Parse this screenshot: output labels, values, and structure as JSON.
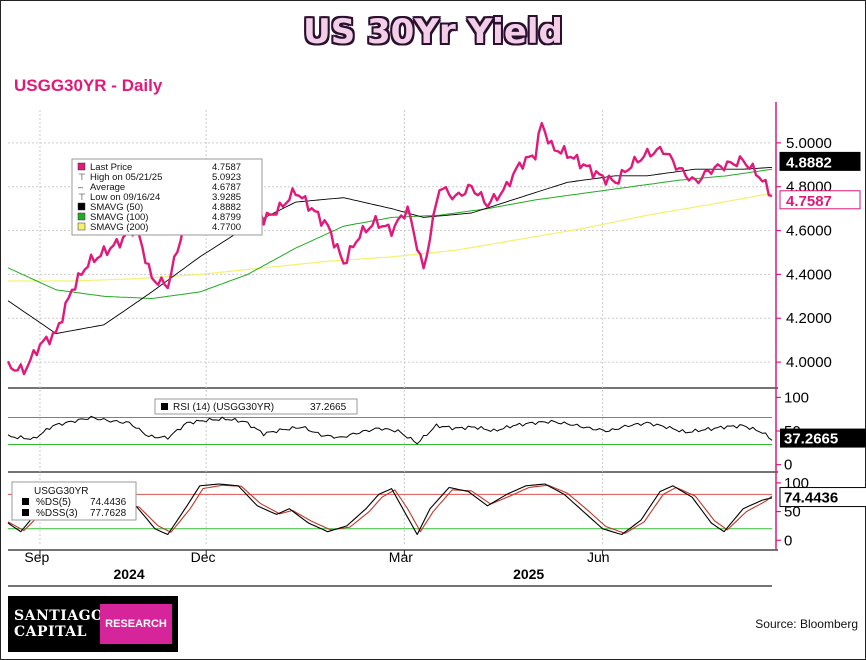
{
  "header": {
    "title": "US 30Yr Yield",
    "subtitle": "USGG30YR - Daily"
  },
  "footer": {
    "logo_line1": "SANTIAGO",
    "logo_line2": "CAPITAL",
    "logo_research": "RESEARCH",
    "source": "Source: Bloomberg"
  },
  "colors": {
    "last_price": "#e0197a",
    "smavg50": "#000000",
    "smavg100": "#22aa22",
    "smavg200": "#f5f06e",
    "rsi": "#000000",
    "ds": "#000000",
    "dss": "#c0392b",
    "title_fill": "#f2cfe6"
  },
  "chart_data": {
    "type": "line",
    "x_months": [
      {
        "label": "Sep",
        "idx": 2
      },
      {
        "label": "Dec",
        "idx": 54
      },
      {
        "label": "Mar",
        "idx": 116
      },
      {
        "label": "Jun",
        "idx": 178
      }
    ],
    "x_years": [
      {
        "label": "2024",
        "idx": 33
      },
      {
        "label": "2025",
        "idx": 158
      }
    ],
    "x_count": 240,
    "price_panel": {
      "ylim": [
        3.9,
        5.15
      ],
      "yticks": [
        "4.0000",
        "4.2000",
        "4.4000",
        "4.6000",
        "4.8000",
        "5.0000"
      ],
      "legend": [
        {
          "icon": "pink-square",
          "label": "Last Price",
          "value": "4.7587"
        },
        {
          "icon": "high-marker",
          "label": "High on 05/21/25",
          "value": "5.0923"
        },
        {
          "icon": "average-marker",
          "label": "Average",
          "value": "4.6787"
        },
        {
          "icon": "low-marker",
          "label": "Low on 09/16/24",
          "value": "3.9285"
        },
        {
          "icon": "black-square",
          "label": "SMAVG (50)",
          "value": "4.8882"
        },
        {
          "icon": "green-square",
          "label": "SMAVG (100)",
          "value": "4.8799"
        },
        {
          "icon": "yellow-square",
          "label": "SMAVG (200)",
          "value": "4.7700"
        }
      ],
      "right_labels": [
        {
          "text": "4.8882",
          "style": "black"
        },
        {
          "text": "4.7587",
          "style": "pink"
        }
      ],
      "series": [
        {
          "name": "Last Price",
          "color_key": "last_price",
          "knots": [
            [
              0,
              3.98
            ],
            [
              5,
              3.96
            ],
            [
              10,
              4.08
            ],
            [
              15,
              4.13
            ],
            [
              20,
              4.33
            ],
            [
              25,
              4.45
            ],
            [
              30,
              4.5
            ],
            [
              35,
              4.55
            ],
            [
              40,
              4.62
            ],
            [
              45,
              4.38
            ],
            [
              50,
              4.35
            ],
            [
              55,
              4.62
            ],
            [
              60,
              4.75
            ],
            [
              65,
              4.85
            ],
            [
              70,
              4.8
            ],
            [
              75,
              4.85
            ],
            [
              80,
              4.65
            ],
            [
              85,
              4.7
            ],
            [
              90,
              4.78
            ],
            [
              95,
              4.7
            ],
            [
              100,
              4.62
            ],
            [
              105,
              4.45
            ],
            [
              110,
              4.58
            ],
            [
              115,
              4.64
            ],
            [
              120,
              4.6
            ],
            [
              125,
              4.7
            ],
            [
              130,
              4.42
            ],
            [
              135,
              4.8
            ],
            [
              140,
              4.75
            ],
            [
              145,
              4.8
            ],
            [
              150,
              4.72
            ],
            [
              155,
              4.78
            ],
            [
              160,
              4.9
            ],
            [
              165,
              4.95
            ],
            [
              167,
              5.09
            ],
            [
              170,
              4.98
            ],
            [
              175,
              4.95
            ],
            [
              180,
              4.9
            ],
            [
              185,
              4.85
            ],
            [
              190,
              4.82
            ],
            [
              195,
              4.9
            ],
            [
              200,
              4.95
            ],
            [
              205,
              4.97
            ],
            [
              210,
              4.88
            ],
            [
              215,
              4.82
            ],
            [
              220,
              4.88
            ],
            [
              225,
              4.9
            ],
            [
              230,
              4.92
            ],
            [
              235,
              4.85
            ],
            [
              239,
              4.76
            ]
          ]
        },
        {
          "name": "SMAVG (50)",
          "color_key": "smavg50",
          "knots": [
            [
              0,
              4.28
            ],
            [
              15,
              4.13
            ],
            [
              30,
              4.17
            ],
            [
              45,
              4.32
            ],
            [
              60,
              4.48
            ],
            [
              75,
              4.62
            ],
            [
              90,
              4.73
            ],
            [
              105,
              4.75
            ],
            [
              120,
              4.7
            ],
            [
              130,
              4.66
            ],
            [
              145,
              4.68
            ],
            [
              160,
              4.75
            ],
            [
              175,
              4.82
            ],
            [
              190,
              4.85
            ],
            [
              200,
              4.85
            ],
            [
              215,
              4.88
            ],
            [
              230,
              4.88
            ],
            [
              239,
              4.8882
            ]
          ]
        },
        {
          "name": "SMAVG (100)",
          "color_key": "smavg100",
          "knots": [
            [
              0,
              4.43
            ],
            [
              15,
              4.33
            ],
            [
              30,
              4.3
            ],
            [
              45,
              4.29
            ],
            [
              60,
              4.32
            ],
            [
              75,
              4.4
            ],
            [
              90,
              4.52
            ],
            [
              105,
              4.62
            ],
            [
              120,
              4.66
            ],
            [
              135,
              4.67
            ],
            [
              150,
              4.7
            ],
            [
              165,
              4.74
            ],
            [
              180,
              4.77
            ],
            [
              195,
              4.8
            ],
            [
              210,
              4.83
            ],
            [
              225,
              4.85
            ],
            [
              239,
              4.8799
            ]
          ]
        },
        {
          "name": "SMAVG (200)",
          "color_key": "smavg200",
          "knots": [
            [
              0,
              4.37
            ],
            [
              20,
              4.37
            ],
            [
              40,
              4.38
            ],
            [
              60,
              4.4
            ],
            [
              80,
              4.43
            ],
            [
              100,
              4.46
            ],
            [
              120,
              4.48
            ],
            [
              140,
              4.51
            ],
            [
              160,
              4.56
            ],
            [
              180,
              4.61
            ],
            [
              200,
              4.67
            ],
            [
              220,
              4.72
            ],
            [
              239,
              4.77
            ]
          ]
        }
      ]
    },
    "rsi_panel": {
      "ylim": [
        0,
        100
      ],
      "yticks": [
        "0",
        "50",
        "100"
      ],
      "reference_lines": [
        30,
        70
      ],
      "legend": {
        "label": "RSI (14) (USGG30YR)",
        "value": "37.2665"
      },
      "right_label": "37.2665",
      "series": [
        {
          "name": "RSI (14) (USGG30YR)",
          "color_key": "rsi",
          "knots": [
            [
              0,
              42
            ],
            [
              8,
              38
            ],
            [
              14,
              58
            ],
            [
              20,
              64
            ],
            [
              26,
              70
            ],
            [
              32,
              65
            ],
            [
              38,
              62
            ],
            [
              44,
              42
            ],
            [
              50,
              40
            ],
            [
              56,
              62
            ],
            [
              62,
              66
            ],
            [
              68,
              68
            ],
            [
              74,
              64
            ],
            [
              80,
              46
            ],
            [
              86,
              52
            ],
            [
              92,
              56
            ],
            [
              98,
              44
            ],
            [
              104,
              40
            ],
            [
              110,
              48
            ],
            [
              116,
              54
            ],
            [
              122,
              50
            ],
            [
              128,
              32
            ],
            [
              134,
              58
            ],
            [
              140,
              54
            ],
            [
              146,
              56
            ],
            [
              152,
              50
            ],
            [
              158,
              58
            ],
            [
              164,
              62
            ],
            [
              170,
              64
            ],
            [
              176,
              60
            ],
            [
              182,
              54
            ],
            [
              188,
              50
            ],
            [
              194,
              58
            ],
            [
              200,
              62
            ],
            [
              206,
              56
            ],
            [
              212,
              48
            ],
            [
              218,
              52
            ],
            [
              224,
              56
            ],
            [
              230,
              58
            ],
            [
              236,
              48
            ],
            [
              239,
              37
            ]
          ]
        }
      ]
    },
    "stoch_panel": {
      "ylim": [
        0,
        100
      ],
      "yticks": [
        "0",
        "50",
        "100"
      ],
      "reference_lines": [
        20,
        80
      ],
      "legend_title": "USGG30YR",
      "legend": [
        {
          "icon": "black-square",
          "label": "%DS(5)",
          "value": "74.4436"
        },
        {
          "icon": "black-square",
          "label": "%DSS(3)",
          "value": "77.7628"
        }
      ],
      "right_label": "74.4436",
      "series": [
        {
          "name": "%DS(5)",
          "color_key": "ds",
          "knots": [
            [
              0,
              30
            ],
            [
              4,
              15
            ],
            [
              10,
              55
            ],
            [
              16,
              85
            ],
            [
              22,
              95
            ],
            [
              28,
              85
            ],
            [
              34,
              60
            ],
            [
              40,
              60
            ],
            [
              46,
              20
            ],
            [
              50,
              10
            ],
            [
              56,
              60
            ],
            [
              60,
              95
            ],
            [
              66,
              98
            ],
            [
              72,
              95
            ],
            [
              78,
              60
            ],
            [
              84,
              45
            ],
            [
              88,
              55
            ],
            [
              94,
              30
            ],
            [
              100,
              15
            ],
            [
              106,
              25
            ],
            [
              112,
              55
            ],
            [
              116,
              80
            ],
            [
              120,
              90
            ],
            [
              124,
              50
            ],
            [
              128,
              10
            ],
            [
              132,
              55
            ],
            [
              138,
              92
            ],
            [
              144,
              85
            ],
            [
              150,
              60
            ],
            [
              156,
              80
            ],
            [
              162,
              95
            ],
            [
              168,
              98
            ],
            [
              174,
              80
            ],
            [
              180,
              50
            ],
            [
              186,
              20
            ],
            [
              192,
              10
            ],
            [
              198,
              35
            ],
            [
              204,
              85
            ],
            [
              208,
              95
            ],
            [
              214,
              75
            ],
            [
              220,
              30
            ],
            [
              224,
              15
            ],
            [
              230,
              55
            ],
            [
              236,
              70
            ],
            [
              239,
              74
            ]
          ]
        },
        {
          "name": "%DSS(3)",
          "color_key": "dss",
          "knots": [
            [
              0,
              32
            ],
            [
              5,
              17
            ],
            [
              11,
              50
            ],
            [
              17,
              80
            ],
            [
              23,
              92
            ],
            [
              29,
              87
            ],
            [
              35,
              64
            ],
            [
              41,
              58
            ],
            [
              47,
              25
            ],
            [
              51,
              14
            ],
            [
              57,
              55
            ],
            [
              61,
              90
            ],
            [
              67,
              96
            ],
            [
              73,
              94
            ],
            [
              79,
              64
            ],
            [
              85,
              46
            ],
            [
              89,
              52
            ],
            [
              95,
              33
            ],
            [
              101,
              18
            ],
            [
              107,
              23
            ],
            [
              113,
              50
            ],
            [
              117,
              75
            ],
            [
              121,
              88
            ],
            [
              125,
              55
            ],
            [
              129,
              15
            ],
            [
              133,
              50
            ],
            [
              139,
              88
            ],
            [
              145,
              86
            ],
            [
              151,
              63
            ],
            [
              157,
              77
            ],
            [
              163,
              92
            ],
            [
              169,
              96
            ],
            [
              175,
              82
            ],
            [
              181,
              54
            ],
            [
              187,
              24
            ],
            [
              193,
              12
            ],
            [
              199,
              32
            ],
            [
              205,
              80
            ],
            [
              209,
              92
            ],
            [
              215,
              77
            ],
            [
              221,
              34
            ],
            [
              225,
              18
            ],
            [
              231,
              50
            ],
            [
              237,
              68
            ],
            [
              239,
              77
            ]
          ]
        }
      ]
    }
  }
}
